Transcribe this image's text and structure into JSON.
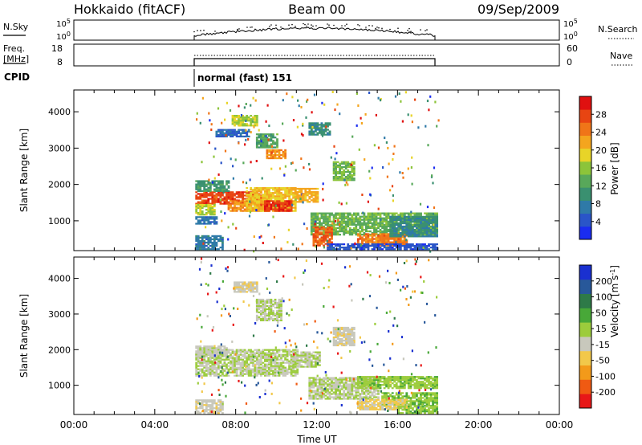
{
  "header": {
    "station": "Hokkaido (fitACF)",
    "beam": "Beam 00",
    "date": "09/Sep/2009"
  },
  "nsky_panel": {
    "left_label": "N.Sky",
    "right_label": "N.Search",
    "tick_top": "10^5",
    "tick_bottom": "10^0"
  },
  "freq_panel": {
    "left_label_1": "Freq.",
    "left_label_2": "[MHz]",
    "right_label": "Nave",
    "left_tick_top": "18",
    "left_tick_bottom": "8",
    "right_tick_top": "60",
    "right_tick_bottom": "0"
  },
  "cpid": {
    "label": "CPID",
    "value": "normal (fast) 151"
  },
  "colors": {
    "power": [
      "#1a2cf0",
      "#2a55c8",
      "#2f7aa8",
      "#3a9070",
      "#58a85a",
      "#8cc43a",
      "#e8d428",
      "#f4a51e",
      "#f07518",
      "#e84512",
      "#e01010"
    ],
    "velocity": [
      "#e81818",
      "#f05a12",
      "#f39a1a",
      "#f2c84a",
      "#c8c8bc",
      "#9ccc3c",
      "#48a838",
      "#2e7a48",
      "#28589a",
      "#1a30d0"
    ]
  },
  "chart_data": [
    {
      "type": "heatmap",
      "title": "",
      "xlabel": "",
      "ylabel": "Slant Range [km]",
      "x_tick_labels": [
        "00:00",
        "04:00",
        "08:00",
        "12:00",
        "16:00",
        "20:00",
        "00:00"
      ],
      "xlim_hours": [
        0,
        24
      ],
      "ylim": [
        180,
        4600
      ],
      "y_ticks": [
        1000,
        2000,
        3000,
        4000
      ],
      "colorbar": {
        "label": "Power [dB]",
        "ticks": [
          "4",
          "8",
          "12",
          "16",
          "20",
          "24",
          "28"
        ],
        "range": [
          0,
          30
        ]
      },
      "data_extent_hours": [
        6,
        18
      ],
      "regions": [
        {
          "t0": 6.0,
          "t1": 9.2,
          "r0": 1450,
          "r1": 1800,
          "level": 26
        },
        {
          "t0": 6.0,
          "t1": 6.9,
          "r0": 1150,
          "r1": 1450,
          "level": 16
        },
        {
          "t0": 6.0,
          "t1": 7.0,
          "r0": 900,
          "r1": 1100,
          "level": 6
        },
        {
          "t0": 6.0,
          "t1": 7.6,
          "r0": 1800,
          "r1": 2100,
          "level": 10
        },
        {
          "t0": 7.6,
          "t1": 9.6,
          "r0": 1250,
          "r1": 1550,
          "level": 22
        },
        {
          "t0": 8.5,
          "t1": 10.9,
          "r0": 1250,
          "r1": 1900,
          "level": 19
        },
        {
          "t0": 9.4,
          "t1": 10.7,
          "r0": 1250,
          "r1": 1550,
          "level": 27
        },
        {
          "t0": 10.9,
          "t1": 12.0,
          "r0": 1500,
          "r1": 1900,
          "level": 20
        },
        {
          "t0": 7.0,
          "t1": 8.6,
          "r0": 3300,
          "r1": 3500,
          "level": 5
        },
        {
          "t0": 7.8,
          "t1": 9.0,
          "r0": 3600,
          "r1": 3900,
          "level": 16
        },
        {
          "t0": 9.0,
          "t1": 10.0,
          "r0": 3000,
          "r1": 3400,
          "level": 12
        },
        {
          "t0": 9.5,
          "t1": 10.4,
          "r0": 2700,
          "r1": 2950,
          "level": 22
        },
        {
          "t0": 11.6,
          "t1": 12.6,
          "r0": 3350,
          "r1": 3700,
          "level": 9
        },
        {
          "t0": 12.8,
          "t1": 13.8,
          "r0": 2100,
          "r1": 2600,
          "level": 14
        },
        {
          "t0": 11.7,
          "t1": 18.0,
          "r0": 600,
          "r1": 1200,
          "level": 13
        },
        {
          "t0": 11.8,
          "t1": 12.7,
          "r0": 300,
          "r1": 800,
          "level": 25
        },
        {
          "t0": 14.0,
          "t1": 16.5,
          "r0": 300,
          "r1": 650,
          "level": 23
        },
        {
          "t0": 15.6,
          "t1": 18.0,
          "r0": 550,
          "r1": 1100,
          "level": 9
        },
        {
          "t0": 6.0,
          "t1": 7.3,
          "r0": 200,
          "r1": 600,
          "level": 7
        },
        {
          "t0": 12.5,
          "t1": 18.0,
          "r0": 200,
          "r1": 350,
          "level": 4
        }
      ]
    },
    {
      "type": "heatmap",
      "title": "",
      "xlabel": "Time UT",
      "ylabel": "Slant Range [km]",
      "x_tick_labels": [
        "00:00",
        "04:00",
        "08:00",
        "12:00",
        "16:00",
        "20:00",
        "00:00"
      ],
      "xlim_hours": [
        0,
        24
      ],
      "ylim": [
        180,
        4600
      ],
      "y_ticks": [
        1000,
        2000,
        3000,
        4000
      ],
      "colorbar": {
        "label": "Velocity [m s^-1]",
        "ticks": [
          "-200",
          "-100",
          "-50",
          "-15",
          "15",
          "50",
          "100",
          "200"
        ],
        "range": [
          -250,
          250
        ]
      },
      "data_extent_hours": [
        6,
        18
      ],
      "regions": [
        {
          "t0": 6.0,
          "t1": 11.0,
          "r0": 1250,
          "r1": 2000,
          "level": 0
        },
        {
          "t0": 6.0,
          "t1": 7.6,
          "r0": 1800,
          "r1": 2100,
          "level": -20
        },
        {
          "t0": 10.9,
          "t1": 12.1,
          "r0": 1500,
          "r1": 1950,
          "level": 0
        },
        {
          "t0": 7.9,
          "t1": 9.0,
          "r0": 3600,
          "r1": 3900,
          "level": -35
        },
        {
          "t0": 9.0,
          "t1": 10.2,
          "r0": 2800,
          "r1": 3400,
          "level": 0
        },
        {
          "t0": 12.8,
          "t1": 13.8,
          "r0": 2100,
          "r1": 2600,
          "level": -30
        },
        {
          "t0": 11.6,
          "t1": 15.0,
          "r0": 600,
          "r1": 1200,
          "level": 0
        },
        {
          "t0": 14.0,
          "t1": 18.0,
          "r0": 900,
          "r1": 1250,
          "level": 30
        },
        {
          "t0": 15.2,
          "t1": 18.0,
          "r0": 400,
          "r1": 800,
          "level": 40
        },
        {
          "t0": 14.0,
          "t1": 16.5,
          "r0": 300,
          "r1": 600,
          "level": -60
        },
        {
          "t0": 6.0,
          "t1": 7.3,
          "r0": 200,
          "r1": 600,
          "level": -30
        },
        {
          "t0": 16.0,
          "t1": 18.0,
          "r0": 200,
          "r1": 400,
          "level": 35
        }
      ]
    }
  ]
}
